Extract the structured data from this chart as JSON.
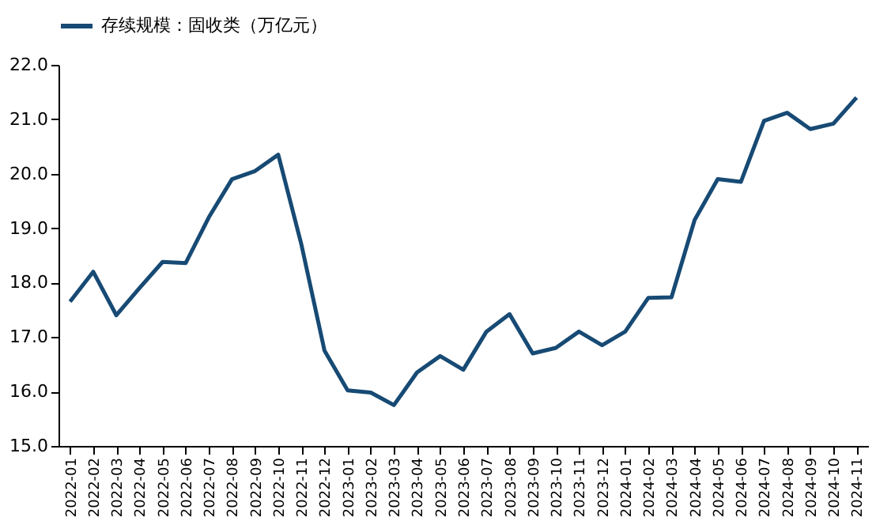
{
  "chart_data": {
    "type": "line",
    "categories": [
      "2022-01",
      "2022-02",
      "2022-03",
      "2022-04",
      "2022-05",
      "2022-06",
      "2022-07",
      "2022-08",
      "2022-09",
      "2022-10",
      "2022-11",
      "2022-12",
      "2023-01",
      "2023-02",
      "2023-03",
      "2023-04",
      "2023-05",
      "2023-06",
      "2023-07",
      "2023-08",
      "2023-09",
      "2023-10",
      "2023-11",
      "2023-12",
      "2024-01",
      "2024-02",
      "2024-03",
      "2024-04",
      "2024-05",
      "2024-06",
      "2024-07",
      "2024-08",
      "2024-09",
      "2024-10",
      "2024-11"
    ],
    "series": [
      {
        "name": "存续规模：固收类（万亿元）",
        "color": "#174a74",
        "values": [
          17.65,
          18.2,
          17.4,
          17.9,
          18.38,
          18.36,
          19.2,
          19.9,
          20.05,
          20.35,
          18.7,
          16.75,
          16.02,
          15.98,
          15.75,
          16.35,
          16.65,
          16.4,
          17.1,
          17.42,
          16.7,
          16.8,
          17.1,
          16.85,
          17.1,
          17.72,
          17.73,
          19.15,
          19.9,
          19.85,
          20.97,
          21.12,
          20.82,
          20.92,
          21.4
        ]
      }
    ],
    "ylim": [
      15,
      22
    ],
    "yticks": [
      {
        "value": 15,
        "label": "15.0"
      },
      {
        "value": 16,
        "label": "16.0"
      },
      {
        "value": 17,
        "label": "17.0"
      },
      {
        "value": 18,
        "label": "18.0"
      },
      {
        "value": 19,
        "label": "19.0"
      },
      {
        "value": 20,
        "label": "20.0"
      },
      {
        "value": 21,
        "label": "21.0"
      },
      {
        "value": 22,
        "label": "22.0"
      }
    ],
    "grid": false,
    "legend": "top",
    "marker": "none",
    "line_style": "solid"
  }
}
